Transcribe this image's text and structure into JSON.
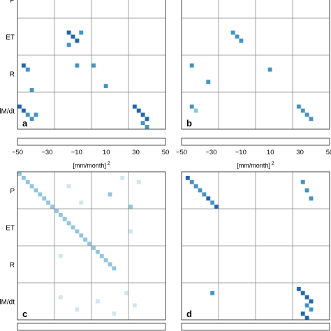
{
  "chart_data": [
    {
      "type": "heatmap",
      "panel": "a",
      "blocks": [
        "P",
        "ET",
        "R",
        "dM/dt"
      ],
      "color_range": [
        -50,
        50
      ],
      "cells": [
        {
          "r": 0,
          "c": 0,
          "v": 45
        },
        {
          "r": 0,
          "c": 1,
          "v": 40
        },
        {
          "r": 0,
          "c": 2,
          "v": 42
        },
        {
          "r": 1,
          "c": 0,
          "v": 38
        },
        {
          "r": 1,
          "c": 1,
          "v": 48
        },
        {
          "r": 1,
          "c": 3,
          "v": 35
        },
        {
          "r": 2,
          "c": 0,
          "v": 44
        },
        {
          "r": 2,
          "c": 2,
          "v": 46
        },
        {
          "r": 2,
          "c": 3,
          "v": 30
        },
        {
          "r": 3,
          "c": 1,
          "v": 36
        },
        {
          "r": 3,
          "c": 3,
          "v": 42
        },
        {
          "r": 0,
          "c": 13,
          "v": 40
        },
        {
          "r": 1,
          "c": 12,
          "v": 35
        },
        {
          "r": 2,
          "c": 14,
          "v": 30
        },
        {
          "r": 0,
          "c": 28,
          "v": 45
        },
        {
          "r": 1,
          "c": 30,
          "v": 40
        },
        {
          "r": 2,
          "c": 29,
          "v": 42
        },
        {
          "r": 3,
          "c": 31,
          "v": 38
        },
        {
          "r": 12,
          "c": 12,
          "v": 45
        },
        {
          "r": 13,
          "c": 13,
          "v": 40
        },
        {
          "r": 14,
          "c": 14,
          "v": 42
        },
        {
          "r": 12,
          "c": 15,
          "v": 36
        },
        {
          "r": 15,
          "c": 12,
          "v": 30
        },
        {
          "r": 20,
          "c": 14,
          "v": 35
        },
        {
          "r": 20,
          "c": 18,
          "v": 38
        },
        {
          "r": 20,
          "c": 1,
          "v": 40
        },
        {
          "r": 21,
          "c": 2,
          "v": 38
        },
        {
          "r": 26,
          "c": 3,
          "v": 30
        },
        {
          "r": 25,
          "c": 21,
          "v": 35
        },
        {
          "r": 30,
          "c": 0,
          "v": 45
        },
        {
          "r": 31,
          "c": 1,
          "v": 42
        },
        {
          "r": 32,
          "c": 2,
          "v": 38
        },
        {
          "r": 33,
          "c": 3,
          "v": 36
        },
        {
          "r": 32,
          "c": 4,
          "v": 34
        },
        {
          "r": 30,
          "c": 28,
          "v": 44
        },
        {
          "r": 31,
          "c": 29,
          "v": 46
        },
        {
          "r": 32,
          "c": 30,
          "v": 40
        },
        {
          "r": 33,
          "c": 31,
          "v": 42
        },
        {
          "r": 34,
          "c": 30,
          "v": 38
        },
        {
          "r": 35,
          "c": 31,
          "v": 36
        }
      ]
    },
    {
      "type": "heatmap",
      "panel": "b",
      "blocks": [
        "P",
        "ET",
        "R",
        "dM/dt"
      ],
      "color_range": [
        -50,
        50
      ],
      "cells": [
        {
          "r": 0,
          "c": 0,
          "v": 40
        },
        {
          "r": 0,
          "c": 1,
          "v": 36
        },
        {
          "r": 1,
          "c": 0,
          "v": 38
        },
        {
          "r": 1,
          "c": 2,
          "v": 34
        },
        {
          "r": 2,
          "c": 1,
          "v": 40
        },
        {
          "r": 2,
          "c": 3,
          "v": 32
        },
        {
          "r": 3,
          "c": 2,
          "v": 36
        },
        {
          "r": 0,
          "c": 28,
          "v": 40
        },
        {
          "r": 1,
          "c": 29,
          "v": 35
        },
        {
          "r": 2,
          "c": 30,
          "v": 36
        },
        {
          "r": 12,
          "c": 12,
          "v": 38
        },
        {
          "r": 13,
          "c": 13,
          "v": 35
        },
        {
          "r": 14,
          "c": 14,
          "v": 30
        },
        {
          "r": 20,
          "c": 2,
          "v": 36
        },
        {
          "r": 24,
          "c": 6,
          "v": 30
        },
        {
          "r": 21,
          "c": 21,
          "v": 35
        },
        {
          "r": 30,
          "c": 2,
          "v": 30
        },
        {
          "r": 31,
          "c": 3,
          "v": 28
        },
        {
          "r": 30,
          "c": 28,
          "v": 38
        },
        {
          "r": 31,
          "c": 29,
          "v": 36
        },
        {
          "r": 32,
          "c": 30,
          "v": 34
        },
        {
          "r": 33,
          "c": 31,
          "v": 30
        }
      ]
    },
    {
      "type": "heatmap",
      "panel": "c",
      "blocks": [
        "P",
        "ET",
        "R",
        "dM/dt"
      ],
      "color_range": [
        -50,
        50
      ],
      "cells": [
        {
          "r": 0,
          "c": 0,
          "v": 20
        },
        {
          "r": 1,
          "c": 1,
          "v": 20
        },
        {
          "r": 2,
          "c": 2,
          "v": 20
        },
        {
          "r": 3,
          "c": 3,
          "v": 20
        },
        {
          "r": 4,
          "c": 4,
          "v": 20
        },
        {
          "r": 5,
          "c": 5,
          "v": 20
        },
        {
          "r": 6,
          "c": 6,
          "v": 20
        },
        {
          "r": 7,
          "c": 7,
          "v": 20
        },
        {
          "r": 8,
          "c": 8,
          "v": 20
        },
        {
          "r": 9,
          "c": 9,
          "v": 20
        },
        {
          "r": 10,
          "c": 10,
          "v": 20
        },
        {
          "r": 11,
          "c": 11,
          "v": 20
        },
        {
          "r": 12,
          "c": 12,
          "v": 20
        },
        {
          "r": 13,
          "c": 13,
          "v": 20
        },
        {
          "r": 14,
          "c": 14,
          "v": 20
        },
        {
          "r": 15,
          "c": 15,
          "v": 20
        },
        {
          "r": 16,
          "c": 16,
          "v": 20
        },
        {
          "r": 17,
          "c": 17,
          "v": 20
        },
        {
          "r": 18,
          "c": 18,
          "v": 20
        },
        {
          "r": 19,
          "c": 19,
          "v": 20
        },
        {
          "r": 20,
          "c": 20,
          "v": 20
        },
        {
          "r": 21,
          "c": 21,
          "v": 20
        },
        {
          "r": 22,
          "c": 22,
          "v": 20
        },
        {
          "r": 23,
          "c": 23,
          "v": 20
        },
        {
          "r": 3,
          "c": 12,
          "v": 18
        },
        {
          "r": 7,
          "c": 15,
          "v": 18
        },
        {
          "r": 5,
          "c": 22,
          "v": 20
        },
        {
          "r": 1,
          "c": 25,
          "v": 18
        },
        {
          "r": 8,
          "c": 27,
          "v": 20
        },
        {
          "r": 2,
          "c": 29,
          "v": 18
        },
        {
          "r": 14,
          "c": 27,
          "v": 18
        },
        {
          "r": 20,
          "c": 10,
          "v": 18
        },
        {
          "r": 30,
          "c": 10,
          "v": 18
        },
        {
          "r": 33,
          "c": 14,
          "v": 18
        },
        {
          "r": 31,
          "c": 19,
          "v": 18
        },
        {
          "r": 34,
          "c": 23,
          "v": 18
        },
        {
          "r": 29,
          "c": 26,
          "v": 18
        },
        {
          "r": 32,
          "c": 28,
          "v": 18
        }
      ]
    },
    {
      "type": "heatmap",
      "panel": "d",
      "blocks": [
        "P",
        "ET",
        "R",
        "dM/dt"
      ],
      "color_range": [
        -50,
        50
      ],
      "cells": [
        {
          "r": 1,
          "c": 1,
          "v": 40
        },
        {
          "r": 2,
          "c": 2,
          "v": 38
        },
        {
          "r": 3,
          "c": 3,
          "v": 36
        },
        {
          "r": 4,
          "c": 4,
          "v": 34
        },
        {
          "r": 5,
          "c": 5,
          "v": 36
        },
        {
          "r": 6,
          "c": 6,
          "v": 42
        },
        {
          "r": 7,
          "c": 7,
          "v": 38
        },
        {
          "r": 8,
          "c": 8,
          "v": 40
        },
        {
          "r": 2,
          "c": 29,
          "v": 36
        },
        {
          "r": 4,
          "c": 30,
          "v": 30
        },
        {
          "r": 6,
          "c": 31,
          "v": 34
        },
        {
          "r": 28,
          "c": 28,
          "v": 40
        },
        {
          "r": 29,
          "c": 29,
          "v": 42
        },
        {
          "r": 30,
          "c": 30,
          "v": 44
        },
        {
          "r": 31,
          "c": 31,
          "v": 40
        },
        {
          "r": 32,
          "c": 30,
          "v": 38
        },
        {
          "r": 33,
          "c": 31,
          "v": 36
        },
        {
          "r": 34,
          "c": 29,
          "v": 40
        },
        {
          "r": 35,
          "c": 30,
          "v": 42
        },
        {
          "r": 29,
          "c": 7,
          "v": 36
        }
      ]
    }
  ],
  "colorbars": [
    {
      "ticks": [
        "−50",
        "−30",
        "−10",
        "10",
        "30",
        "50"
      ],
      "unit": "[mm/month]",
      "unit_exp": "2"
    },
    {
      "ticks": [
        "−50",
        "−30",
        "−10",
        "10",
        "30",
        "50"
      ],
      "unit": "[mm/month]",
      "unit_exp": "2"
    },
    {
      "ticks": [],
      "unit": "",
      "unit_exp": ""
    },
    {
      "ticks": [],
      "unit": "",
      "unit_exp": ""
    }
  ],
  "colormap": [
    {
      "lo": -50,
      "hi": -40,
      "color": "#67001f"
    },
    {
      "lo": -40,
      "hi": -30,
      "color": "#b2182b"
    },
    {
      "lo": -30,
      "hi": -20,
      "color": "#d6604d"
    },
    {
      "lo": -20,
      "hi": -10,
      "color": "#f4a582"
    },
    {
      "lo": -10,
      "hi": 0,
      "color": "#fddbc7"
    },
    {
      "lo": 0,
      "hi": 10,
      "color": "#ffffff"
    },
    {
      "lo": 10,
      "hi": 20,
      "color": "#d1e5f0"
    },
    {
      "lo": 20,
      "hi": 30,
      "color": "#92c5de"
    },
    {
      "lo": 30,
      "hi": 40,
      "color": "#4393c3"
    },
    {
      "lo": 40,
      "hi": 50,
      "color": "#2166ac"
    }
  ]
}
